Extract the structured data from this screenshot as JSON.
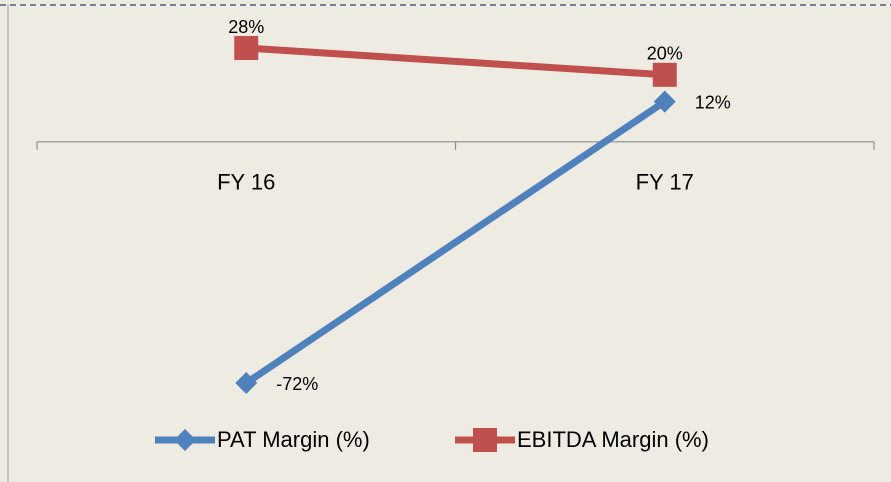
{
  "chart_data": {
    "type": "line",
    "categories": [
      "FY 16",
      "FY 17"
    ],
    "series": [
      {
        "name": "PAT Margin (%)",
        "color": "#4f81bd",
        "marker": "diamond",
        "values": [
          -72,
          12
        ],
        "value_labels": [
          "-72%",
          "12%"
        ]
      },
      {
        "name": "EBITDA Margin (%)",
        "color": "#c0504d",
        "marker": "square",
        "values": [
          28,
          20
        ],
        "value_labels": [
          "28%",
          "20%"
        ]
      }
    ]
  }
}
